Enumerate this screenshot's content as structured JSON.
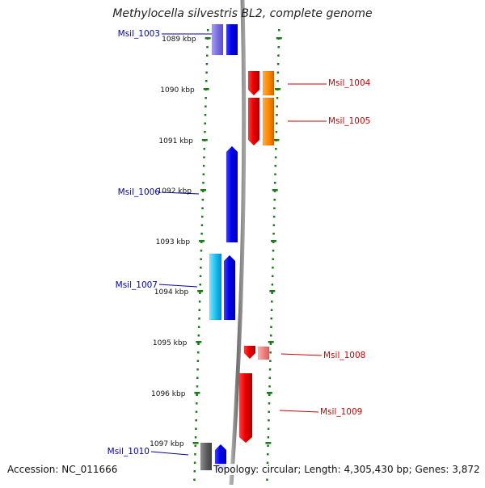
{
  "header": {
    "title": "Methylocella silvestris BL2, complete genome"
  },
  "footer": {
    "accession": "Accession: NC_011666",
    "topology": "Topology: circular; Length: 4,305,430 bp; Genes: 3,872"
  },
  "colors": {
    "left_gene_label": "#0000aa",
    "right_gene_label": "#cc0000",
    "tick": "#1a7a1a",
    "backbone": "#8a8a8a"
  },
  "scale_labels": [
    "1089 kbp",
    "1090 kbp",
    "1091 kbp",
    "1092 kbp",
    "1093 kbp",
    "1094 kbp",
    "1095 kbp",
    "1096 kbp",
    "1097 kbp"
  ],
  "gene_labels": [
    {
      "name": "Msil_1003",
      "side": "left"
    },
    {
      "name": "Msil_1004",
      "side": "right"
    },
    {
      "name": "Msil_1005",
      "side": "right"
    },
    {
      "name": "Msil_1006",
      "side": "left"
    },
    {
      "name": "Msil_1007",
      "side": "left"
    },
    {
      "name": "Msil_1008",
      "side": "right"
    },
    {
      "name": "Msil_1009",
      "side": "right"
    },
    {
      "name": "Msil_1010",
      "side": "left"
    }
  ]
}
